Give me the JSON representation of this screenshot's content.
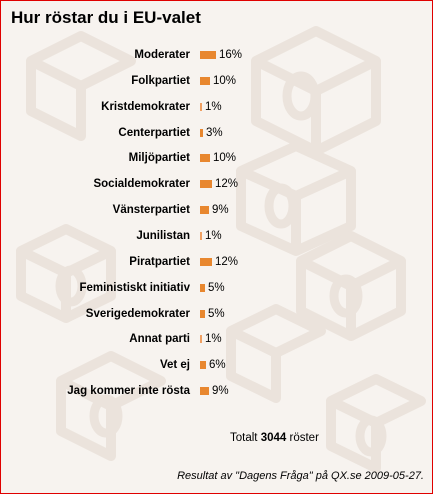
{
  "title": "Hur röstar du i EU-valet",
  "chart_data": {
    "type": "bar",
    "orientation": "horizontal",
    "title": "Hur röstar du i EU-valet",
    "categories": [
      "Moderater",
      "Folkpartiet",
      "Kristdemokrater",
      "Centerpartiet",
      "Miljöpartiet",
      "Socialdemokrater",
      "Vänsterpartiet",
      "Junilistan",
      "Piratpartiet",
      "Feministiskt initiativ",
      "Sverigedemokrater",
      "Annat parti",
      "Vet ej",
      "Jag kommer inte rösta"
    ],
    "values": [
      16,
      10,
      1,
      3,
      10,
      12,
      9,
      1,
      12,
      5,
      5,
      1,
      6,
      9
    ],
    "value_labels": [
      "16%",
      "10%",
      "1%",
      "3%",
      "10%",
      "12%",
      "9%",
      "1%",
      "12%",
      "5%",
      "5%",
      "1%",
      "6%",
      "9%"
    ],
    "bar_color": "#e8872f",
    "grid": false,
    "legend": "none"
  },
  "total": {
    "prefix": "Totalt",
    "count": "3044",
    "suffix": "röster"
  },
  "footer": "Resultat av \"Dagens Fråga\" på QX.se 2009-05-27.",
  "colors": {
    "border": "#e00000",
    "background": "#f7f3ef",
    "bar": "#e8872f"
  }
}
